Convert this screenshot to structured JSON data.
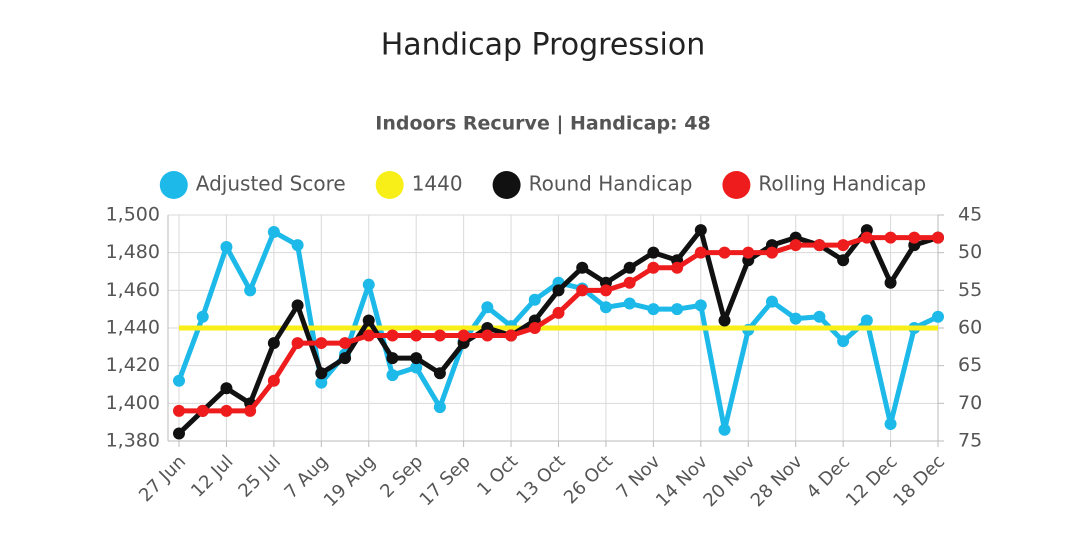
{
  "chart_data": {
    "type": "line",
    "title": "Handicap Progression",
    "subtitle": "Indoors Recurve | Handicap: 48",
    "categories": [
      "27 Jun",
      null,
      "12 Jul",
      null,
      "25 Jul",
      null,
      "7 Aug",
      null,
      "19 Aug",
      null,
      "2 Sep",
      null,
      "17 Sep",
      null,
      "1 Oct",
      null,
      "13 Oct",
      null,
      "26 Oct",
      null,
      "7 Nov",
      null,
      "14 Nov",
      null,
      "20 Nov",
      null,
      "28 Nov",
      null,
      "4 Dec",
      null,
      "12 Dec",
      null,
      "18 Dec"
    ],
    "ylim": [
      1380,
      1500
    ],
    "yticks": [
      {
        "value": 1380,
        "label": "1,380"
      },
      {
        "value": 1400,
        "label": "1,400"
      },
      {
        "value": 1420,
        "label": "1,420"
      },
      {
        "value": 1440,
        "label": "1,440"
      },
      {
        "value": 1460,
        "label": "1,460"
      },
      {
        "value": 1480,
        "label": "1,480"
      },
      {
        "value": 1500,
        "label": "1,500"
      }
    ],
    "y2lim": [
      75,
      45
    ],
    "y2ticks": [
      45,
      50,
      55,
      60,
      65,
      70,
      75
    ],
    "grid": true,
    "series": [
      {
        "name": "Adjusted Score",
        "color": "#1cb9e9",
        "points": true,
        "values": [
          1412,
          1446,
          1483,
          1460,
          1491,
          1484,
          1411,
          1426,
          1463,
          1415,
          1419,
          1398,
          1433,
          1451,
          1441,
          1455,
          1464,
          1461,
          1451,
          1453,
          1450,
          1450,
          1452,
          1386,
          1439,
          1454,
          1445,
          1446,
          1433,
          1444,
          1389,
          1440,
          1446
        ]
      },
      {
        "name": "1440",
        "color": "#f7ef17",
        "points": false,
        "values": [
          1440,
          1440,
          1440,
          1440,
          1440,
          1440,
          1440,
          1440,
          1440,
          1440,
          1440,
          1440,
          1440,
          1440,
          1440,
          1440,
          1440,
          1440,
          1440,
          1440,
          1440,
          1440,
          1440,
          1440,
          1440,
          1440,
          1440,
          1440,
          1440,
          1440,
          1440,
          1440,
          1440
        ]
      },
      {
        "name": "Round Handicap",
        "color": "#111111",
        "points": true,
        "axis": "y2",
        "values": [
          74,
          71,
          68,
          70,
          62,
          57,
          66,
          64,
          59,
          64,
          64,
          66,
          62,
          60,
          61,
          59,
          55,
          52,
          54,
          52,
          50,
          51,
          47,
          59,
          51,
          49,
          48,
          49,
          51,
          47,
          54,
          49,
          48
        ]
      },
      {
        "name": "Rolling Handicap",
        "color": "#ee1c1c",
        "points": true,
        "axis": "y2",
        "values": [
          71,
          71,
          71,
          71,
          67,
          62,
          62,
          62,
          61,
          61,
          61,
          61,
          61,
          61,
          61,
          60,
          58,
          55,
          55,
          54,
          52,
          52,
          50,
          50,
          50,
          50,
          49,
          49,
          49,
          48,
          48,
          48,
          48
        ]
      }
    ]
  }
}
